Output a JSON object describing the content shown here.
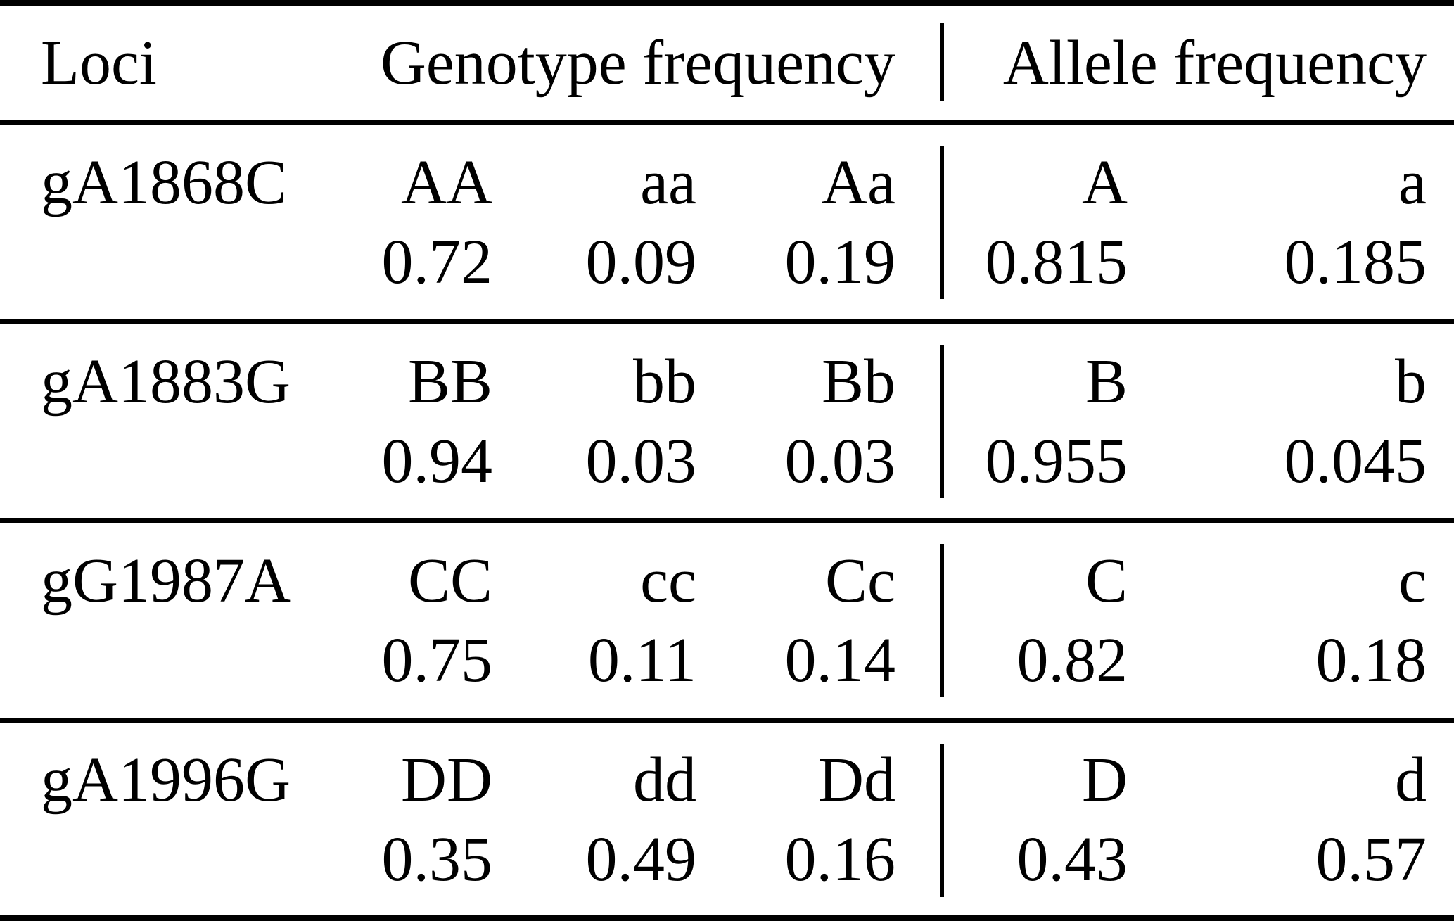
{
  "table": {
    "headers": {
      "loci": "Loci",
      "genotype": "Genotype frequency",
      "allele": "Allele frequency"
    },
    "rows": [
      {
        "locus": "gA1868C",
        "genotypes": [
          {
            "label": "AA",
            "value": "0.72"
          },
          {
            "label": "aa",
            "value": "0.09"
          },
          {
            "label": "Aa",
            "value": "0.19"
          }
        ],
        "alleles": [
          {
            "label": "A",
            "value": "0.815"
          },
          {
            "label": "a",
            "value": "0.185"
          }
        ]
      },
      {
        "locus": "gA1883G",
        "genotypes": [
          {
            "label": "BB",
            "value": "0.94"
          },
          {
            "label": "bb",
            "value": "0.03"
          },
          {
            "label": "Bb",
            "value": "0.03"
          }
        ],
        "alleles": [
          {
            "label": "B",
            "value": "0.955"
          },
          {
            "label": "b",
            "value": "0.045"
          }
        ]
      },
      {
        "locus": "gG1987A",
        "genotypes": [
          {
            "label": "CC",
            "value": "0.75"
          },
          {
            "label": "cc",
            "value": "0.11"
          },
          {
            "label": "Cc",
            "value": "0.14"
          }
        ],
        "alleles": [
          {
            "label": "C",
            "value": "0.82"
          },
          {
            "label": "c",
            "value": "0.18"
          }
        ]
      },
      {
        "locus": "gA1996G",
        "genotypes": [
          {
            "label": "DD",
            "value": "0.35"
          },
          {
            "label": "dd",
            "value": "0.49"
          },
          {
            "label": "Dd",
            "value": "0.16"
          }
        ],
        "alleles": [
          {
            "label": "D",
            "value": "0.43"
          },
          {
            "label": "d",
            "value": "0.57"
          }
        ]
      }
    ]
  },
  "colors": {
    "text": "#000000",
    "background": "#ffffff",
    "rule": "#000000"
  }
}
